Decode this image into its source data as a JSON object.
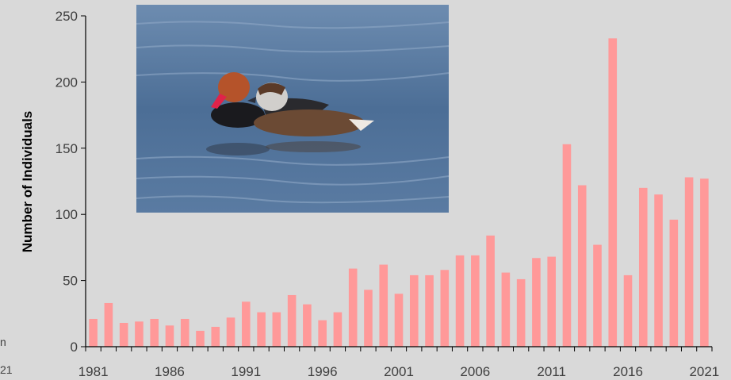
{
  "chart_data": {
    "type": "bar",
    "title": "",
    "xlabel": "",
    "ylabel": "Number of Individuals",
    "ylim": [
      0,
      250
    ],
    "yticks": [
      0,
      50,
      100,
      150,
      200,
      250
    ],
    "xtick_labels": [
      "1981",
      "1986",
      "1991",
      "1996",
      "2001",
      "2006",
      "2011",
      "2016",
      "2021"
    ],
    "grid": false,
    "legend": "none",
    "bar_color": "#ff9999",
    "categories": [
      "1981",
      "1982",
      "1983",
      "1984",
      "1985",
      "1986",
      "1987",
      "1988",
      "1989",
      "1990",
      "1991",
      "1992",
      "1993",
      "1994",
      "1995",
      "1996",
      "1997",
      "1998",
      "1999",
      "2000",
      "2001",
      "2002",
      "2003",
      "2004",
      "2005",
      "2006",
      "2007",
      "2008",
      "2009",
      "2010",
      "2011",
      "2012",
      "2013",
      "2014",
      "2015",
      "2016",
      "2017",
      "2018",
      "2019",
      "2020",
      "2021"
    ],
    "values": [
      21,
      33,
      18,
      19,
      21,
      16,
      21,
      12,
      15,
      22,
      34,
      26,
      26,
      39,
      32,
      20,
      26,
      59,
      43,
      62,
      40,
      54,
      54,
      58,
      69,
      69,
      84,
      56,
      51,
      67,
      68,
      153,
      122,
      77,
      233,
      54,
      120,
      115,
      96,
      128,
      127
    ]
  },
  "photo": {
    "subject": "two red-crested pochard ducks on water",
    "colors": {
      "water": "#4b6f94",
      "water_light": "#7f9ab8",
      "drake_head": "#b5532a",
      "drake_bill": "#e0234a",
      "hen_body": "#6b4a34"
    }
  },
  "edge_fragments": {
    "left_mid": "n",
    "left_bottom": "21"
  }
}
